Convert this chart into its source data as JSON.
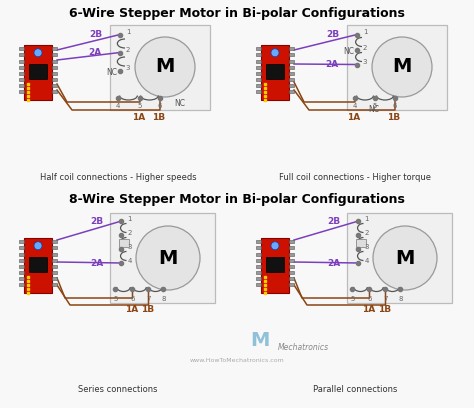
{
  "title_top": "6-Wire Stepper Motor in Bi-polar Configurations",
  "title_bottom": "8-Wire Stepper Motor in Bi-polar Configurations",
  "sub_tl": "Half coil connections - Higher speeds",
  "sub_tr": "Full coil connections - Higher torque",
  "sub_bl": "Series connections",
  "sub_br": "Parallel connections",
  "bg": "#f8f8f8",
  "purple": "#7B3FBE",
  "brown": "#8B4513",
  "black": "#111111",
  "gray": "#888888",
  "red_board": "#CC1100",
  "red_dark": "#880000",
  "motor_box": "#eeeeee",
  "motor_circle": "#e0e0e0",
  "wire_gray": "#999999",
  "brand_color": "#888888",
  "url_color": "#aaaaaa"
}
